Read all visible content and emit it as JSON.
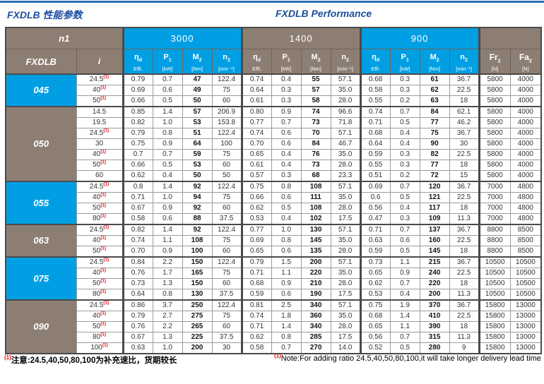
{
  "page": {
    "title_zh": "FXDLB 性能参数",
    "title_en": "FXDLB Performance"
  },
  "colors": {
    "accent_cyan": "#009fe3",
    "accent_brown": "#8d7e74",
    "title_blue": "#1b4e9e",
    "note_red": "#e30613",
    "topbar_blue": "#2e6cb3"
  },
  "table": {
    "n1_label": "n1",
    "model_label": "FXDLB",
    "ratio_label": "i",
    "note_marker": "(1)",
    "speed_groups": [
      "3000",
      "1400",
      "900"
    ],
    "sub_headers": [
      {
        "sym": "η",
        "sub": "d",
        "unit": "Effi."
      },
      {
        "sym": "P",
        "sub": "1",
        "unit": "[kW]"
      },
      {
        "sym": "M",
        "sub": "2",
        "unit": "[Nm]"
      },
      {
        "sym": "n",
        "sub": "2",
        "unit": "[min⁻¹]"
      }
    ],
    "force_headers": [
      {
        "sym": "Fr",
        "sub": "2",
        "unit": "[N]"
      },
      {
        "sym": "Fa",
        "sub": "2",
        "unit": "[N]"
      }
    ],
    "groups": [
      {
        "model": "045",
        "rows": [
          {
            "i": "24.5",
            "note": true,
            "v": [
              "0.79",
              "0.7",
              "47",
              "122.4",
              "0.74",
              "0.4",
              "55",
              "57.1",
              "0.68",
              "0.3",
              "61",
              "36.7"
            ],
            "fr": "5800",
            "fa": "4000"
          },
          {
            "i": "40",
            "note": true,
            "v": [
              "0.69",
              "0.6",
              "49",
              "75",
              "0.64",
              "0.3",
              "57",
              "35.0",
              "0.58",
              "0.3",
              "62",
              "22.5"
            ],
            "fr": "5800",
            "fa": "4000"
          },
          {
            "i": "50",
            "note": true,
            "v": [
              "0.66",
              "0.5",
              "50",
              "60",
              "0.61",
              "0.3",
              "58",
              "28.0",
              "0.55",
              "0.2",
              "63",
              "18"
            ],
            "fr": "5800",
            "fa": "4000"
          }
        ]
      },
      {
        "model": "050",
        "rows": [
          {
            "i": "14.5",
            "note": false,
            "v": [
              "0.85",
              "1.4",
              "57",
              "206.9",
              "0.80",
              "0.9",
              "74",
              "96.6",
              "0.74",
              "0.7",
              "84",
              "62.1"
            ],
            "fr": "5800",
            "fa": "4000"
          },
          {
            "i": "19.5",
            "note": false,
            "v": [
              "0.82",
              "1.0",
              "53",
              "153.8",
              "0.77",
              "0.7",
              "73",
              "71.8",
              "0.71",
              "0.5",
              "77",
              "46.2"
            ],
            "fr": "5800",
            "fa": "4000"
          },
          {
            "i": "24.5",
            "note": true,
            "v": [
              "0.79",
              "0.8",
              "51",
              "122.4",
              "0.74",
              "0.6",
              "70",
              "57.1",
              "0.68",
              "0.4",
              "75",
              "36.7"
            ],
            "fr": "5800",
            "fa": "4000"
          },
          {
            "i": "30",
            "note": false,
            "v": [
              "0.75",
              "0.9",
              "64",
              "100",
              "0.70",
              "0.6",
              "84",
              "46.7",
              "0.64",
              "0.4",
              "90",
              "30"
            ],
            "fr": "5800",
            "fa": "4000"
          },
          {
            "i": "40",
            "note": true,
            "v": [
              "0.7",
              "0.7",
              "59",
              "75",
              "0.65",
              "0.4",
              "76",
              "35.0",
              "0.59",
              "0.3",
              "82",
              "22.5"
            ],
            "fr": "5800",
            "fa": "4000"
          },
          {
            "i": "50",
            "note": true,
            "v": [
              "0.66",
              "0.5",
              "53",
              "60",
              "0.61",
              "0.4",
              "73",
              "28.0",
              "0.55",
              "0.3",
              "77",
              "18"
            ],
            "fr": "5800",
            "fa": "4000"
          },
          {
            "i": "60",
            "note": false,
            "v": [
              "0.62",
              "0.4",
              "50",
              "50",
              "0.57",
              "0.3",
              "68",
              "23.3",
              "0.51",
              "0.2",
              "72",
              "15"
            ],
            "fr": "5800",
            "fa": "4000"
          }
        ]
      },
      {
        "model": "055",
        "rows": [
          {
            "i": "24.5",
            "note": true,
            "v": [
              "0.8",
              "1.4",
              "92",
              "122.4",
              "0.75",
              "0.8",
              "108",
              "57.1",
              "0.69",
              "0.7",
              "120",
              "36.7"
            ],
            "fr": "7000",
            "fa": "4800"
          },
          {
            "i": "40",
            "note": true,
            "v": [
              "0.71",
              "1.0",
              "94",
              "75",
              "0.66",
              "0.6",
              "111",
              "35.0",
              "0.6",
              "0.5",
              "121",
              "22.5"
            ],
            "fr": "7000",
            "fa": "4800"
          },
          {
            "i": "50",
            "note": true,
            "v": [
              "0.67",
              "0.9",
              "92",
              "60",
              "0.62",
              "0.5",
              "108",
              "28.0",
              "0.56",
              "0.4",
              "117",
              "18"
            ],
            "fr": "7000",
            "fa": "4800"
          },
          {
            "i": "80",
            "note": true,
            "v": [
              "0.58",
              "0.6",
              "88",
              "37.5",
              "0.53",
              "0.4",
              "102",
              "17.5",
              "0.47",
              "0.3",
              "109",
              "11.3"
            ],
            "fr": "7000",
            "fa": "4800"
          }
        ]
      },
      {
        "model": "063",
        "rows": [
          {
            "i": "24.5",
            "note": true,
            "v": [
              "0.82",
              "1.4",
              "92",
              "122.4",
              "0.77",
              "1.0",
              "130",
              "57.1",
              "0.71",
              "0.7",
              "137",
              "36.7"
            ],
            "fr": "8800",
            "fa": "8500"
          },
          {
            "i": "40",
            "note": true,
            "v": [
              "0.74",
              "1.1",
              "108",
              "75",
              "0.69",
              "0.8",
              "145",
              "35.0",
              "0.63",
              "0.6",
              "160",
              "22.5"
            ],
            "fr": "8800",
            "fa": "8500"
          },
          {
            "i": "50",
            "note": true,
            "v": [
              "0.70",
              "0.9",
              "100",
              "60",
              "0.65",
              "0.6",
              "135",
              "28.0",
              "0.59",
              "0.5",
              "145",
              "18"
            ],
            "fr": "8800",
            "fa": "8500"
          }
        ]
      },
      {
        "model": "075",
        "rows": [
          {
            "i": "24.5",
            "note": true,
            "v": [
              "0.84",
              "2.2",
              "150",
              "122.4",
              "0.79",
              "1.5",
              "200",
              "57.1",
              "0.73",
              "1.1",
              "215",
              "36.7"
            ],
            "fr": "10500",
            "fa": "10500"
          },
          {
            "i": "40",
            "note": true,
            "v": [
              "0.76",
              "1.7",
              "165",
              "75",
              "0.71",
              "1.1",
              "220",
              "35.0",
              "0.65",
              "0.9",
              "240",
              "22.5"
            ],
            "fr": "10500",
            "fa": "10500"
          },
          {
            "i": "50",
            "note": true,
            "v": [
              "0.73",
              "1.3",
              "150",
              "60",
              "0.68",
              "0.9",
              "210",
              "28.0",
              "0.62",
              "0.7",
              "220",
              "18"
            ],
            "fr": "10500",
            "fa": "10500"
          },
          {
            "i": "80",
            "note": true,
            "v": [
              "0.64",
              "0.8",
              "130",
              "37.5",
              "0.59",
              "0.6",
              "190",
              "17.5",
              "0.53",
              "0.4",
              "200",
              "11.3"
            ],
            "fr": "10500",
            "fa": "10500"
          }
        ]
      },
      {
        "model": "090",
        "rows": [
          {
            "i": "24.5",
            "note": true,
            "v": [
              "0.86",
              "3.7",
              "250",
              "122.4",
              "0.81",
              "2.5",
              "340",
              "57.1",
              "0.75",
              "1.9",
              "370",
              "36.7"
            ],
            "fr": "15800",
            "fa": "13000"
          },
          {
            "i": "40",
            "note": true,
            "v": [
              "0.79",
              "2.7",
              "275",
              "75",
              "0.74",
              "1.8",
              "360",
              "35.0",
              "0.68",
              "1.4",
              "410",
              "22.5"
            ],
            "fr": "15800",
            "fa": "13000"
          },
          {
            "i": "50",
            "note": true,
            "v": [
              "0.76",
              "2.2",
              "265",
              "60",
              "0.71",
              "1.4",
              "340",
              "28.0",
              "0.65",
              "1.1",
              "390",
              "18"
            ],
            "fr": "15800",
            "fa": "13000"
          },
          {
            "i": "80",
            "note": true,
            "v": [
              "0.67",
              "1.3",
              "225",
              "37.5",
              "0.62",
              "0.8",
              "285",
              "17.5",
              "0.56",
              "0.7",
              "315",
              "11.3"
            ],
            "fr": "15800",
            "fa": "13000"
          },
          {
            "i": "100",
            "note": true,
            "v": [
              "0.63",
              "1.0",
              "200",
              "30",
              "0.58",
              "0.7",
              "270",
              "14.0",
              "0.52",
              "0.5",
              "280",
              "9"
            ],
            "fr": "15800",
            "fa": "13000"
          }
        ]
      }
    ]
  },
  "footnotes": {
    "marker": "(1)",
    "zh": "注意:24.5,40,50,80,100为补充速比，货期较长",
    "en": "Note:For adding ratio 24.5,40,50,80,100,it will take longer delivery lead time"
  }
}
